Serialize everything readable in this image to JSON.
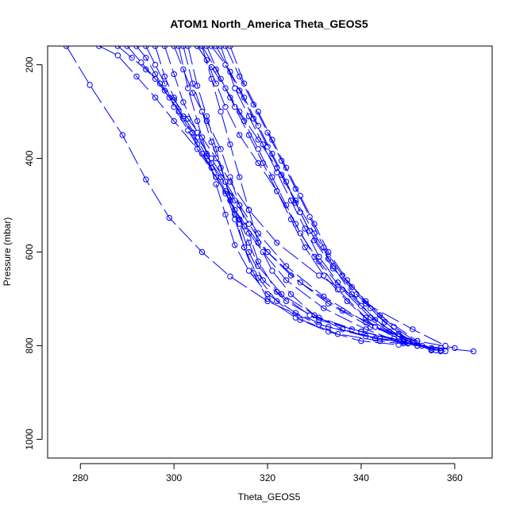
{
  "chart_data": {
    "type": "line",
    "title": "ATOM1 North_America Theta_GEOS5",
    "xlabel": "Theta_GEOS5",
    "ylabel": "Pressure (mbar)",
    "xlim": [
      273,
      368
    ],
    "ylim": [
      1040,
      160
    ],
    "y_inverted": true,
    "xticks": [
      280,
      300,
      320,
      340,
      360
    ],
    "yticks": [
      200,
      400,
      600,
      800,
      1000
    ],
    "grid": false,
    "legend": "none",
    "line_style": "long-dash",
    "marker": "open-circle",
    "color": "#0000ff",
    "series": [
      {
        "x": [
          277,
          282,
          289,
          294,
          299,
          306,
          312,
          320,
          331,
          344,
          357,
          364
        ],
        "y": [
          160,
          243,
          350,
          445,
          527,
          600,
          652,
          705,
          755,
          785,
          805,
          812
        ]
      },
      {
        "x": [
          284,
          288,
          292,
          296,
          300,
          305,
          309,
          313,
          318,
          325,
          333,
          342,
          352,
          360
        ],
        "y": [
          160,
          180,
          225,
          270,
          320,
          380,
          440,
          510,
          580,
          650,
          710,
          760,
          790,
          805
        ]
      },
      {
        "x": [
          288,
          291,
          294,
          297,
          300,
          303,
          306,
          309,
          312,
          316,
          322,
          331,
          341,
          351,
          358
        ],
        "y": [
          160,
          185,
          210,
          240,
          275,
          315,
          355,
          400,
          450,
          510,
          580,
          650,
          710,
          765,
          800
        ]
      },
      {
        "x": [
          290,
          293,
          296,
          299,
          302,
          305,
          308,
          311,
          314,
          318,
          324,
          332,
          341,
          350
        ],
        "y": [
          160,
          195,
          230,
          270,
          310,
          355,
          400,
          450,
          500,
          560,
          630,
          695,
          750,
          790
        ]
      },
      {
        "x": [
          292,
          294,
          296,
          298,
          301,
          304,
          307,
          310,
          313,
          316,
          320,
          327,
          336,
          346,
          355
        ],
        "y": [
          160,
          185,
          220,
          255,
          300,
          345,
          395,
          440,
          490,
          540,
          600,
          665,
          725,
          770,
          805
        ]
      },
      {
        "x": [
          294,
          296,
          298,
          300,
          303,
          306,
          309,
          312,
          315,
          319,
          324,
          332,
          341,
          349
        ],
        "y": [
          160,
          200,
          240,
          290,
          340,
          390,
          440,
          490,
          545,
          600,
          660,
          720,
          765,
          795
        ]
      },
      {
        "x": [
          296,
          298,
          300,
          302,
          305,
          308,
          311,
          314,
          316,
          318,
          323,
          331,
          340,
          350,
          357
        ],
        "y": [
          160,
          225,
          270,
          315,
          370,
          420,
          475,
          530,
          580,
          630,
          690,
          740,
          770,
          795,
          810
        ]
      },
      {
        "x": [
          298,
          300,
          302,
          305,
          308,
          311,
          313,
          315,
          317,
          320,
          326,
          335,
          344,
          352
        ],
        "y": [
          160,
          220,
          280,
          345,
          410,
          470,
          530,
          590,
          645,
          700,
          740,
          775,
          790,
          800
        ]
      },
      {
        "x": [
          300,
          302,
          304,
          307,
          310,
          312,
          314,
          316,
          318,
          322,
          329,
          338,
          347,
          356
        ],
        "y": [
          160,
          210,
          260,
          320,
          380,
          440,
          500,
          560,
          620,
          685,
          735,
          765,
          785,
          810
        ]
      },
      {
        "x": [
          302,
          304,
          306,
          308,
          310,
          312,
          314,
          316,
          319,
          324,
          331,
          340,
          349
        ],
        "y": [
          160,
          240,
          300,
          365,
          420,
          480,
          540,
          600,
          660,
          705,
          745,
          770,
          790
        ]
      },
      {
        "x": [
          305,
          307,
          309,
          311,
          314,
          318,
          322,
          326,
          330,
          335,
          341,
          348,
          355
        ],
        "y": [
          160,
          190,
          240,
          290,
          350,
          410,
          470,
          540,
          610,
          680,
          740,
          780,
          810
        ]
      },
      {
        "x": [
          305,
          308,
          311,
          314,
          318,
          322,
          326,
          330,
          334,
          338,
          343,
          349
        ],
        "y": [
          160,
          205,
          250,
          300,
          360,
          420,
          490,
          560,
          630,
          690,
          745,
          785
        ]
      },
      {
        "x": [
          306,
          309,
          312,
          315,
          318,
          321,
          324,
          327,
          331,
          336,
          342,
          350,
          357
        ],
        "y": [
          160,
          210,
          270,
          320,
          380,
          440,
          500,
          560,
          620,
          680,
          740,
          790,
          812
        ]
      },
      {
        "x": [
          307,
          310,
          313,
          316,
          319,
          322,
          325,
          328,
          332,
          337,
          343,
          350
        ],
        "y": [
          160,
          230,
          290,
          350,
          410,
          470,
          530,
          590,
          650,
          705,
          760,
          795
        ]
      },
      {
        "x": [
          308,
          311,
          314,
          317,
          320,
          323,
          326,
          329,
          333,
          338,
          344,
          352
        ],
        "y": [
          160,
          200,
          255,
          315,
          375,
          435,
          495,
          555,
          615,
          675,
          735,
          790
        ]
      },
      {
        "x": [
          309,
          312,
          315,
          318,
          321,
          324,
          327,
          330,
          334,
          339,
          345,
          351
        ],
        "y": [
          160,
          215,
          270,
          330,
          390,
          450,
          515,
          575,
          635,
          690,
          750,
          793
        ]
      },
      {
        "x": [
          310,
          313,
          316,
          319,
          322,
          325,
          328,
          331,
          335,
          340,
          346,
          352,
          358
        ],
        "y": [
          160,
          250,
          310,
          370,
          430,
          490,
          550,
          610,
          665,
          715,
          770,
          800,
          812
        ]
      },
      {
        "x": [
          311,
          314,
          317,
          320,
          323,
          326,
          329,
          332,
          336,
          341,
          347,
          353
        ],
        "y": [
          160,
          225,
          285,
          345,
          405,
          465,
          525,
          590,
          650,
          705,
          760,
          800
        ]
      },
      {
        "x": [
          312,
          315,
          318,
          321,
          324,
          327,
          330,
          333,
          337,
          342,
          348,
          355
        ],
        "y": [
          160,
          240,
          300,
          360,
          420,
          480,
          540,
          600,
          660,
          720,
          775,
          808
        ]
      },
      {
        "x": [
          306,
          308,
          310,
          312,
          314,
          316,
          318,
          321,
          325,
          330,
          336,
          343,
          350
        ],
        "y": [
          160,
          230,
          300,
          370,
          440,
          510,
          580,
          640,
          690,
          735,
          765,
          785,
          795
        ]
      },
      {
        "x": [
          303,
          305,
          307,
          309,
          311,
          313,
          315,
          318,
          322,
          327,
          333,
          340,
          348
        ],
        "y": [
          160,
          245,
          310,
          380,
          450,
          520,
          590,
          655,
          705,
          745,
          770,
          790,
          798
        ]
      },
      {
        "x": [
          301,
          303,
          305,
          307,
          309,
          311,
          313,
          316,
          320,
          326,
          333,
          341,
          349
        ],
        "y": [
          160,
          250,
          320,
          390,
          455,
          520,
          585,
          640,
          690,
          730,
          760,
          780,
          792
        ]
      }
    ]
  }
}
